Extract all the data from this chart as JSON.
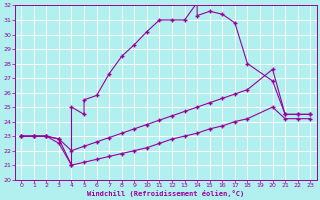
{
  "background_color": "#b2f0f0",
  "grid_color": "#ffffff",
  "line_color": "#990099",
  "xlabel": "Windchill (Refroidissement éolien,°C)",
  "xlim": [
    -0.5,
    23.5
  ],
  "ylim": [
    20,
    32
  ],
  "xticks": [
    0,
    1,
    2,
    3,
    4,
    5,
    6,
    7,
    8,
    9,
    10,
    11,
    12,
    13,
    14,
    15,
    16,
    17,
    18,
    19,
    20,
    21,
    22,
    23
  ],
  "yticks": [
    20,
    21,
    22,
    23,
    24,
    25,
    26,
    27,
    28,
    29,
    30,
    31,
    32
  ],
  "curve1_x": [
    0,
    1,
    2,
    3,
    4,
    4,
    5,
    5,
    6,
    7,
    8,
    9,
    10,
    11,
    12,
    13,
    14,
    14,
    15,
    16,
    17,
    18,
    20,
    21,
    22,
    23
  ],
  "curve1_y": [
    23,
    23,
    23,
    22.8,
    21.0,
    25.0,
    24.5,
    25.5,
    25.8,
    27.3,
    28.5,
    29.3,
    30.2,
    31.0,
    31.0,
    31.0,
    32.2,
    31.3,
    31.6,
    31.4,
    30.8,
    28.0,
    26.8,
    24.5,
    24.5,
    24.5
  ],
  "curve2_x": [
    0,
    1,
    2,
    3,
    4,
    5,
    6,
    7,
    8,
    9,
    10,
    11,
    12,
    13,
    14,
    15,
    16,
    17,
    18,
    20,
    21,
    22,
    23
  ],
  "curve2_y": [
    23,
    23,
    23,
    22.8,
    22.0,
    22.3,
    22.6,
    22.9,
    23.2,
    23.5,
    23.8,
    24.1,
    24.4,
    24.7,
    25.0,
    25.3,
    25.6,
    25.9,
    26.2,
    27.6,
    24.5,
    24.5,
    24.5
  ],
  "curve3_x": [
    0,
    1,
    2,
    3,
    4,
    5,
    6,
    7,
    8,
    9,
    10,
    11,
    12,
    13,
    14,
    15,
    16,
    17,
    18,
    20,
    21,
    22,
    23
  ],
  "curve3_y": [
    23,
    23,
    23,
    22.5,
    21.0,
    21.2,
    21.4,
    21.6,
    21.8,
    22.0,
    22.2,
    22.5,
    22.8,
    23.0,
    23.2,
    23.5,
    23.7,
    24.0,
    24.2,
    25.0,
    24.2,
    24.2,
    24.2
  ]
}
